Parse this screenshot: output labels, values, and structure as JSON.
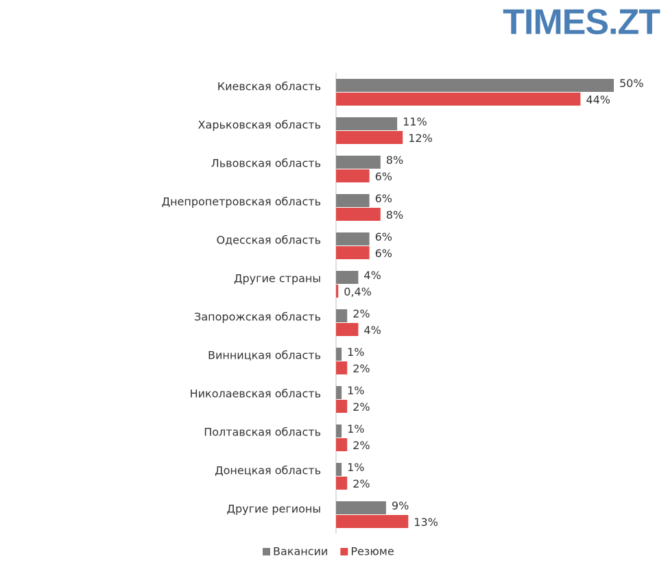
{
  "logo": "TIMES.ZT",
  "chart_data": {
    "type": "hbar",
    "categories": [
      "Киевская область",
      "Харьковская область",
      "Львовская область",
      "Днепропетровская область",
      "Одесская область",
      "Другие страны",
      "Запорожская область",
      "Винницкая область",
      "Николаевская область",
      "Полтавская область",
      "Донецкая область",
      "Другие регионы"
    ],
    "series": [
      {
        "name": "Вакансии",
        "color": "#7f7f7f",
        "values": [
          50,
          11,
          8,
          6,
          6,
          4,
          2,
          1,
          1,
          1,
          1,
          9
        ],
        "value_labels": [
          "50%",
          "11%",
          "8%",
          "6%",
          "6%",
          "4%",
          "2%",
          "1%",
          "1%",
          "1%",
          "1%",
          "9%"
        ]
      },
      {
        "name": "Резюме",
        "color": "#e04a4a",
        "values": [
          44,
          12,
          6,
          8,
          6,
          0.4,
          4,
          2,
          2,
          2,
          2,
          13
        ],
        "value_labels": [
          "44%",
          "12%",
          "6%",
          "8%",
          "6%",
          "0,4%",
          "4%",
          "2%",
          "2%",
          "2%",
          "2%",
          "13%"
        ]
      }
    ]
  }
}
